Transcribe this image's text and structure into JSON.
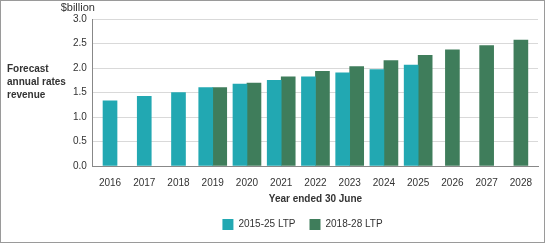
{
  "chart_data": {
    "type": "bar",
    "categories": [
      "2016",
      "2017",
      "2018",
      "2019",
      "2020",
      "2021",
      "2022",
      "2023",
      "2024",
      "2025",
      "2026",
      "2027",
      "2028"
    ],
    "series": [
      {
        "name": "2015-25 LTP",
        "color": "#22a8b2",
        "values": [
          1.33,
          1.42,
          1.5,
          1.6,
          1.67,
          1.75,
          1.82,
          1.9,
          1.97,
          2.06,
          null,
          null,
          null
        ]
      },
      {
        "name": "2018-28 LTP",
        "color": "#3f7d5b",
        "values": [
          null,
          null,
          null,
          1.6,
          1.69,
          1.82,
          1.93,
          2.03,
          2.15,
          2.26,
          2.37,
          2.46,
          2.57
        ]
      }
    ],
    "x_label": "Year ended 30 June",
    "y_label": "Forecast annual rates revenue",
    "annotations": [
      "$billion"
    ],
    "ylim": [
      0,
      3
    ],
    "yticks": [
      {
        "value": 0,
        "label": "0.0"
      },
      0.5,
      {
        "value": 1,
        "label": "1.0"
      },
      1.5,
      {
        "value": 2,
        "label": "2.0"
      },
      2.5,
      {
        "value": 3,
        "label": "3.0"
      }
    ],
    "grid": true,
    "legend": "bottom"
  }
}
